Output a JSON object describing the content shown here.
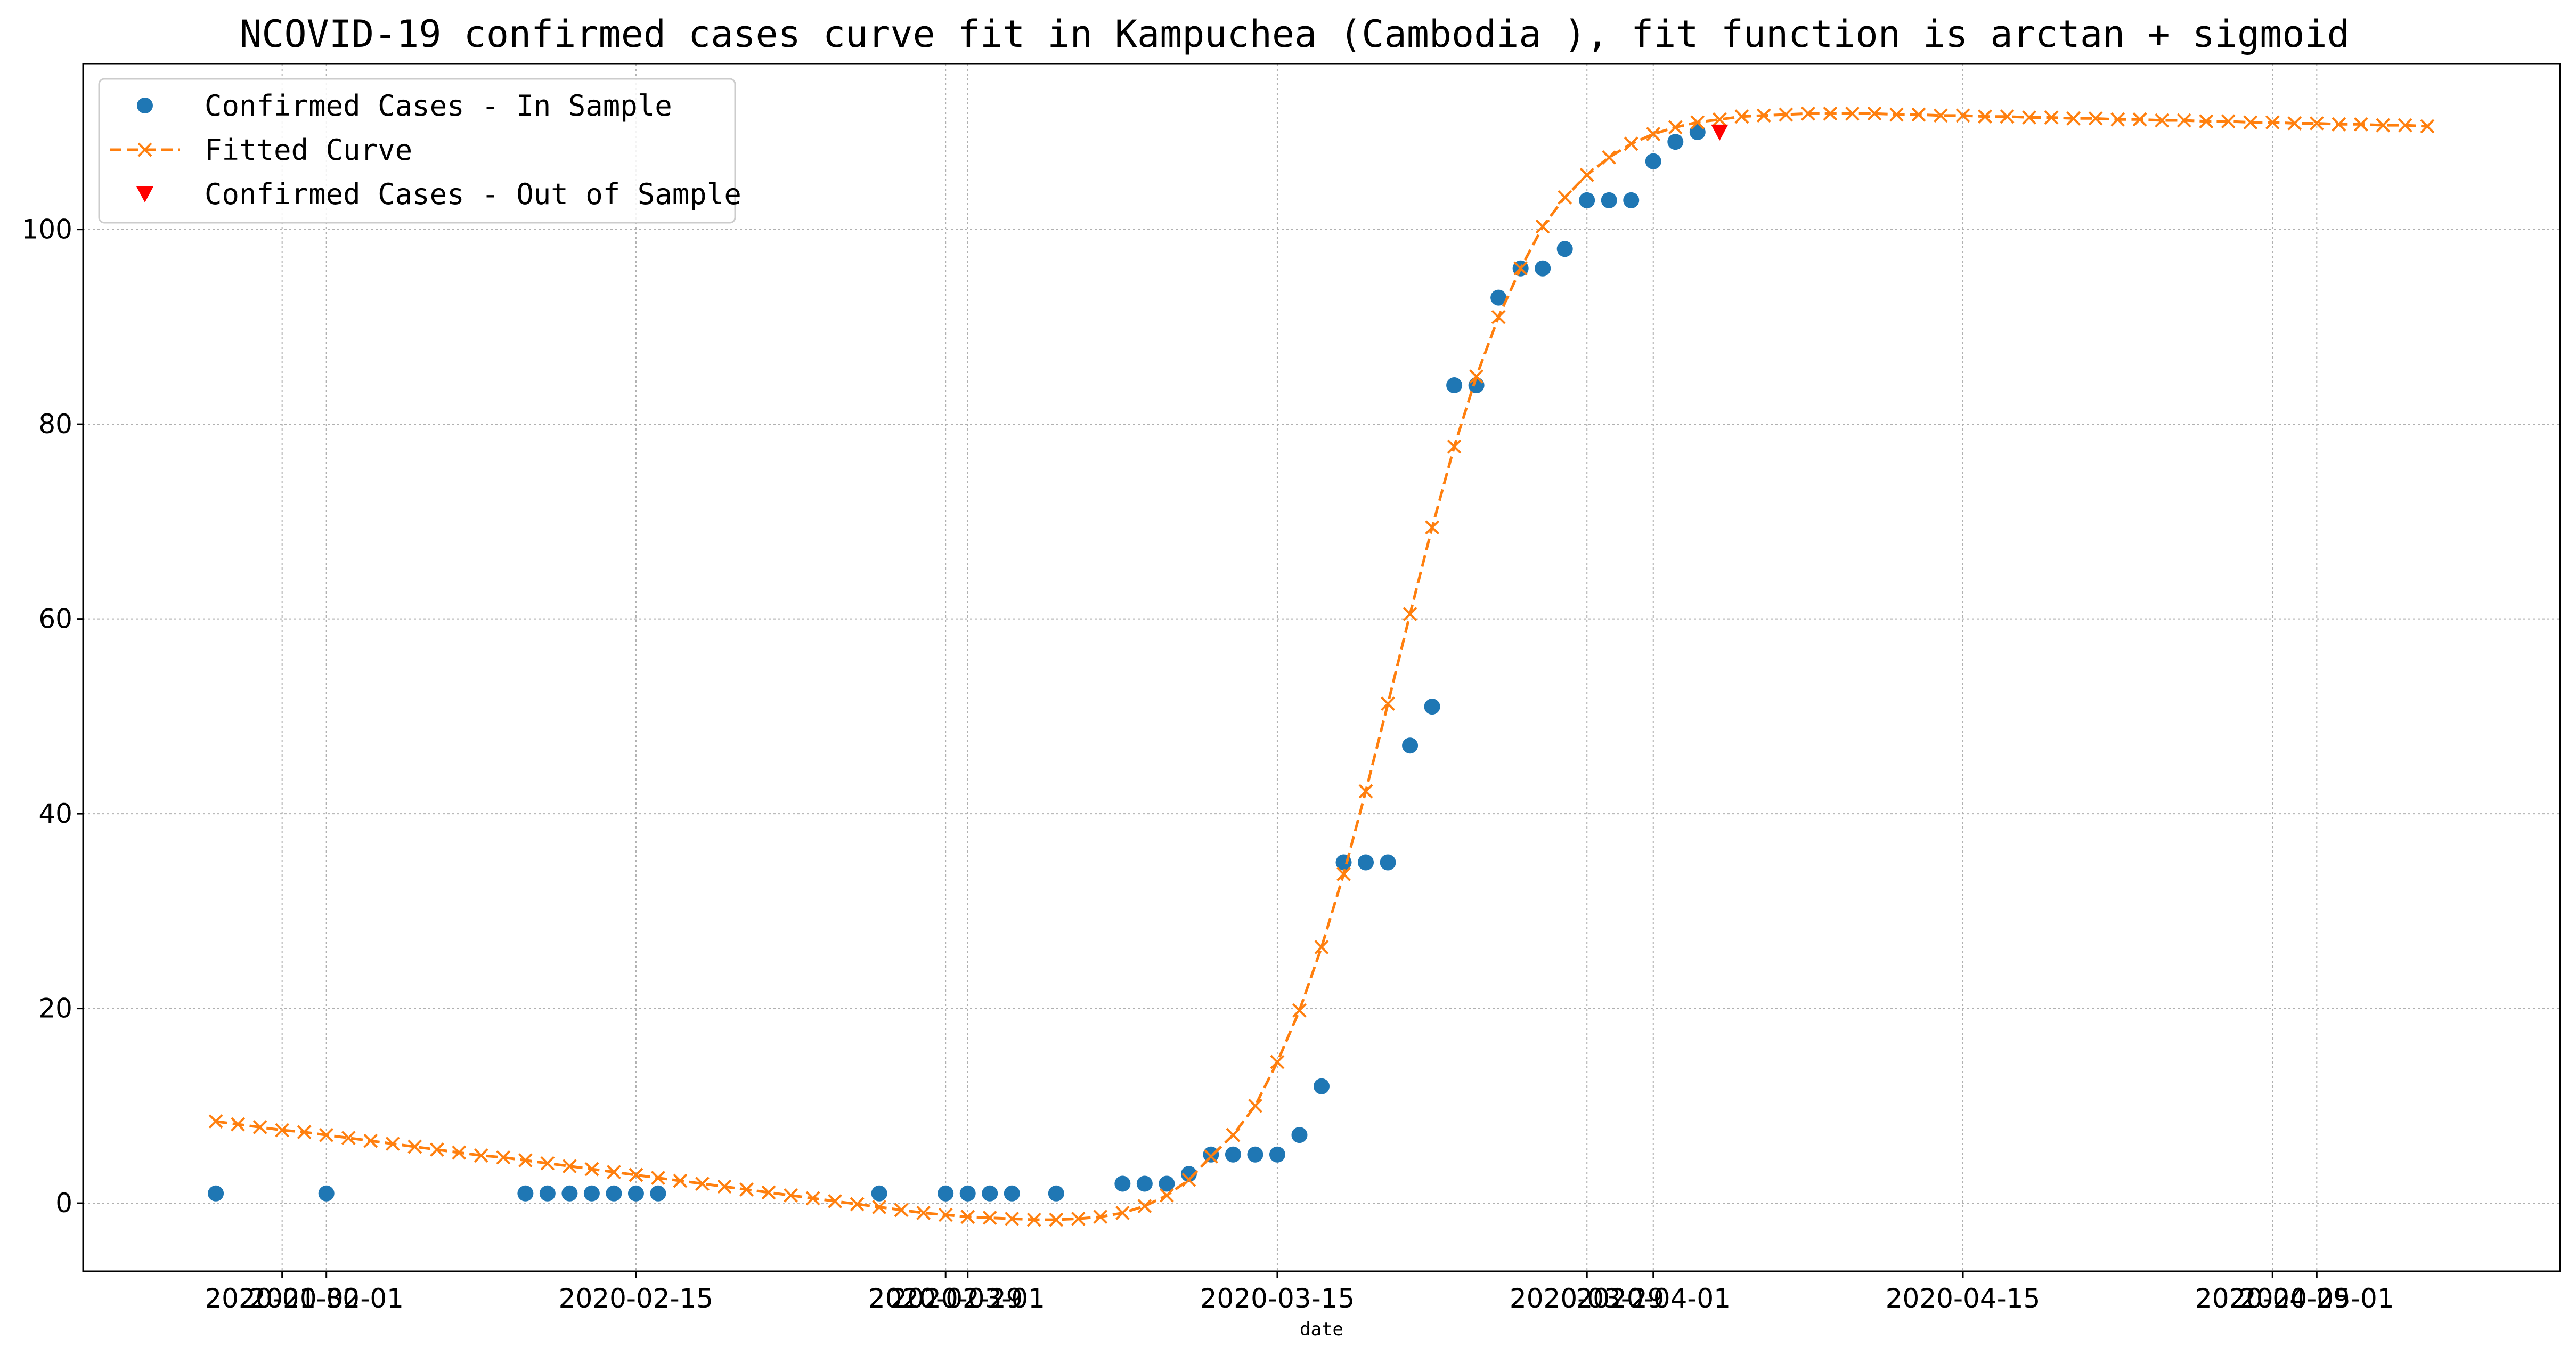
{
  "chart_data": {
    "type": "scatter",
    "title": "NCOVID-19 confirmed cases curve fit in Kampuchea (Cambodia ), fit function is arctan + sigmoid",
    "xlabel": "date",
    "ylabel": "",
    "xlim": [
      "2020-01-21",
      "2020-05-12"
    ],
    "ylim": [
      -7,
      117
    ],
    "grid": true,
    "legend_position": "upper-left",
    "x_ticks": [
      {
        "date": "2020-01-30",
        "label": "2020-01-30"
      },
      {
        "date": "2020-02-01",
        "label": "2020-02-01"
      },
      {
        "date": "2020-02-15",
        "label": "2020-02-15"
      },
      {
        "date": "2020-02-29",
        "label": "2020-02-29"
      },
      {
        "date": "2020-03-01",
        "label": "2020-03-01"
      },
      {
        "date": "2020-03-15",
        "label": "2020-03-15"
      },
      {
        "date": "2020-03-29",
        "label": "2020-03-29"
      },
      {
        "date": "2020-04-01",
        "label": "2020-04-01"
      },
      {
        "date": "2020-04-15",
        "label": "2020-04-15"
      },
      {
        "date": "2020-04-29",
        "label": "2020-04-29"
      },
      {
        "date": "2020-05-01",
        "label": "2020-05-01"
      }
    ],
    "y_ticks": [
      0,
      20,
      40,
      60,
      80,
      100
    ],
    "series": [
      {
        "name": "Confirmed Cases - In Sample",
        "marker": "circle",
        "color": "#1f77b4",
        "points": [
          [
            "2020-01-27",
            1
          ],
          [
            "2020-02-01",
            1
          ],
          [
            "2020-02-10",
            1
          ],
          [
            "2020-02-11",
            1
          ],
          [
            "2020-02-12",
            1
          ],
          [
            "2020-02-13",
            1
          ],
          [
            "2020-02-14",
            1
          ],
          [
            "2020-02-15",
            1
          ],
          [
            "2020-02-16",
            1
          ],
          [
            "2020-02-26",
            1
          ],
          [
            "2020-02-29",
            1
          ],
          [
            "2020-03-01",
            1
          ],
          [
            "2020-03-02",
            1
          ],
          [
            "2020-03-03",
            1
          ],
          [
            "2020-03-05",
            1
          ],
          [
            "2020-03-08",
            2
          ],
          [
            "2020-03-09",
            2
          ],
          [
            "2020-03-10",
            2
          ],
          [
            "2020-03-11",
            3
          ],
          [
            "2020-03-12",
            5
          ],
          [
            "2020-03-13",
            5
          ],
          [
            "2020-03-14",
            5
          ],
          [
            "2020-03-15",
            5
          ],
          [
            "2020-03-16",
            7
          ],
          [
            "2020-03-17",
            12
          ],
          [
            "2020-03-18",
            35
          ],
          [
            "2020-03-19",
            35
          ],
          [
            "2020-03-20",
            35
          ],
          [
            "2020-03-21",
            47
          ],
          [
            "2020-03-22",
            51
          ],
          [
            "2020-03-23",
            84
          ],
          [
            "2020-03-24",
            84
          ],
          [
            "2020-03-25",
            93
          ],
          [
            "2020-03-26",
            96
          ],
          [
            "2020-03-27",
            96
          ],
          [
            "2020-03-28",
            98
          ],
          [
            "2020-03-29",
            103
          ],
          [
            "2020-03-30",
            103
          ],
          [
            "2020-03-31",
            103
          ],
          [
            "2020-04-01",
            107
          ],
          [
            "2020-04-02",
            109
          ],
          [
            "2020-04-03",
            110
          ]
        ]
      },
      {
        "name": "Fitted Curve",
        "marker": "x",
        "line_style": "dashed",
        "color": "#ff7f0e",
        "points": [
          [
            "2020-01-27",
            8.4
          ],
          [
            "2020-01-28",
            8.1
          ],
          [
            "2020-01-29",
            7.8
          ],
          [
            "2020-01-30",
            7.5
          ],
          [
            "2020-01-31",
            7.3
          ],
          [
            "2020-02-01",
            7.0
          ],
          [
            "2020-02-02",
            6.7
          ],
          [
            "2020-02-03",
            6.4
          ],
          [
            "2020-02-04",
            6.1
          ],
          [
            "2020-02-05",
            5.8
          ],
          [
            "2020-02-06",
            5.5
          ],
          [
            "2020-02-07",
            5.2
          ],
          [
            "2020-02-08",
            4.9
          ],
          [
            "2020-02-09",
            4.7
          ],
          [
            "2020-02-10",
            4.4
          ],
          [
            "2020-02-11",
            4.1
          ],
          [
            "2020-02-12",
            3.8
          ],
          [
            "2020-02-13",
            3.5
          ],
          [
            "2020-02-14",
            3.2
          ],
          [
            "2020-02-15",
            2.9
          ],
          [
            "2020-02-16",
            2.6
          ],
          [
            "2020-02-17",
            2.3
          ],
          [
            "2020-02-18",
            2.0
          ],
          [
            "2020-02-19",
            1.7
          ],
          [
            "2020-02-20",
            1.4
          ],
          [
            "2020-02-21",
            1.1
          ],
          [
            "2020-02-22",
            0.8
          ],
          [
            "2020-02-23",
            0.5
          ],
          [
            "2020-02-24",
            0.2
          ],
          [
            "2020-02-25",
            -0.1
          ],
          [
            "2020-02-26",
            -0.4
          ],
          [
            "2020-02-27",
            -0.7
          ],
          [
            "2020-02-28",
            -1.0
          ],
          [
            "2020-02-29",
            -1.2
          ],
          [
            "2020-03-01",
            -1.4
          ],
          [
            "2020-03-02",
            -1.5
          ],
          [
            "2020-03-03",
            -1.6
          ],
          [
            "2020-03-04",
            -1.7
          ],
          [
            "2020-03-05",
            -1.7
          ],
          [
            "2020-03-06",
            -1.6
          ],
          [
            "2020-03-07",
            -1.4
          ],
          [
            "2020-03-08",
            -1.0
          ],
          [
            "2020-03-09",
            -0.3
          ],
          [
            "2020-03-10",
            0.8
          ],
          [
            "2020-03-11",
            2.4
          ],
          [
            "2020-03-12",
            4.8
          ],
          [
            "2020-03-13",
            7.0
          ],
          [
            "2020-03-14",
            10.0
          ],
          [
            "2020-03-15",
            14.5
          ],
          [
            "2020-03-16",
            19.8
          ],
          [
            "2020-03-17",
            26.3
          ],
          [
            "2020-03-18",
            33.8
          ],
          [
            "2020-03-19",
            42.3
          ],
          [
            "2020-03-20",
            51.3
          ],
          [
            "2020-03-21",
            60.5
          ],
          [
            "2020-03-22",
            69.4
          ],
          [
            "2020-03-23",
            77.7
          ],
          [
            "2020-03-24",
            84.9
          ],
          [
            "2020-03-25",
            91.0
          ],
          [
            "2020-03-26",
            96.0
          ],
          [
            "2020-03-27",
            100.3
          ],
          [
            "2020-03-28",
            103.3
          ],
          [
            "2020-03-29",
            105.6
          ],
          [
            "2020-03-30",
            107.4
          ],
          [
            "2020-03-31",
            108.8
          ],
          [
            "2020-04-01",
            109.8
          ],
          [
            "2020-04-02",
            110.5
          ],
          [
            "2020-04-03",
            111.0
          ],
          [
            "2020-04-04",
            111.3
          ],
          [
            "2020-04-05",
            111.6
          ],
          [
            "2020-04-06",
            111.7
          ],
          [
            "2020-04-07",
            111.8
          ],
          [
            "2020-04-08",
            111.9
          ],
          [
            "2020-04-09",
            111.9
          ],
          [
            "2020-04-10",
            111.9
          ],
          [
            "2020-04-11",
            111.9
          ],
          [
            "2020-04-12",
            111.8
          ],
          [
            "2020-04-13",
            111.8
          ],
          [
            "2020-04-14",
            111.7
          ],
          [
            "2020-04-15",
            111.7
          ],
          [
            "2020-04-16",
            111.6
          ],
          [
            "2020-04-17",
            111.6
          ],
          [
            "2020-04-18",
            111.5
          ],
          [
            "2020-04-19",
            111.5
          ],
          [
            "2020-04-20",
            111.4
          ],
          [
            "2020-04-21",
            111.4
          ],
          [
            "2020-04-22",
            111.3
          ],
          [
            "2020-04-23",
            111.3
          ],
          [
            "2020-04-24",
            111.2
          ],
          [
            "2020-04-25",
            111.2
          ],
          [
            "2020-04-26",
            111.1
          ],
          [
            "2020-04-27",
            111.1
          ],
          [
            "2020-04-28",
            111.0
          ],
          [
            "2020-04-29",
            111.0
          ],
          [
            "2020-04-30",
            110.9
          ],
          [
            "2020-05-01",
            110.9
          ],
          [
            "2020-05-02",
            110.8
          ],
          [
            "2020-05-03",
            110.8
          ],
          [
            "2020-05-04",
            110.7
          ],
          [
            "2020-05-05",
            110.7
          ],
          [
            "2020-05-06",
            110.6
          ]
        ]
      },
      {
        "name": "Confirmed Cases - Out of Sample",
        "marker": "triangle-down",
        "color": "#ff0000",
        "points": [
          [
            "2020-04-04",
            110
          ]
        ]
      }
    ]
  }
}
